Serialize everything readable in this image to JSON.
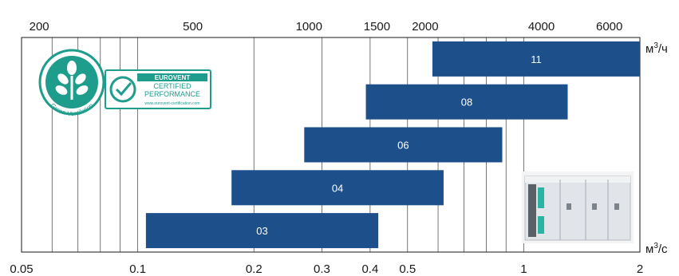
{
  "chart_data": {
    "type": "bar",
    "orientation": "horizontal-range",
    "x_scale": "log",
    "top_axis": {
      "unit": "м³/ч",
      "unit_base": "м",
      "unit_sup": "3",
      "unit_tail": "/ч",
      "ticks": [
        200,
        500,
        1000,
        1500,
        2000,
        4000,
        6000
      ],
      "tick_labels": [
        "200",
        "500",
        "1000",
        "1500",
        "2000",
        "4000",
        "6000"
      ]
    },
    "bottom_axis": {
      "unit": "м³/с",
      "unit_base": "м",
      "unit_sup": "3",
      "unit_tail": "/с",
      "ticks": [
        0.05,
        0.1,
        0.2,
        0.3,
        0.4,
        0.5,
        1,
        2
      ],
      "tick_labels": [
        "0.05",
        "0.1",
        "0.2",
        "0.3",
        "0.4",
        "0.5",
        "1",
        "2"
      ],
      "range": [
        0.05,
        2
      ]
    },
    "grid": true,
    "series": [
      {
        "label": "11",
        "min": 0.58,
        "max": 2.0
      },
      {
        "label": "08",
        "min": 0.39,
        "max": 1.3
      },
      {
        "label": "06",
        "min": 0.27,
        "max": 0.88
      },
      {
        "label": "04",
        "min": 0.175,
        "max": 0.62
      },
      {
        "label": "03",
        "min": 0.105,
        "max": 0.42
      }
    ],
    "bar_color": "#1d4f8a"
  },
  "logos": {
    "green_ventilation_text": "Green Ventilation",
    "eurovent_title": "EUROVENT",
    "eurovent_line2": "CERTIFIED",
    "eurovent_line3": "PERFORMANCE",
    "eurovent_url": "www.eurovent-certification.com",
    "green_color": "#1f9d8c"
  }
}
